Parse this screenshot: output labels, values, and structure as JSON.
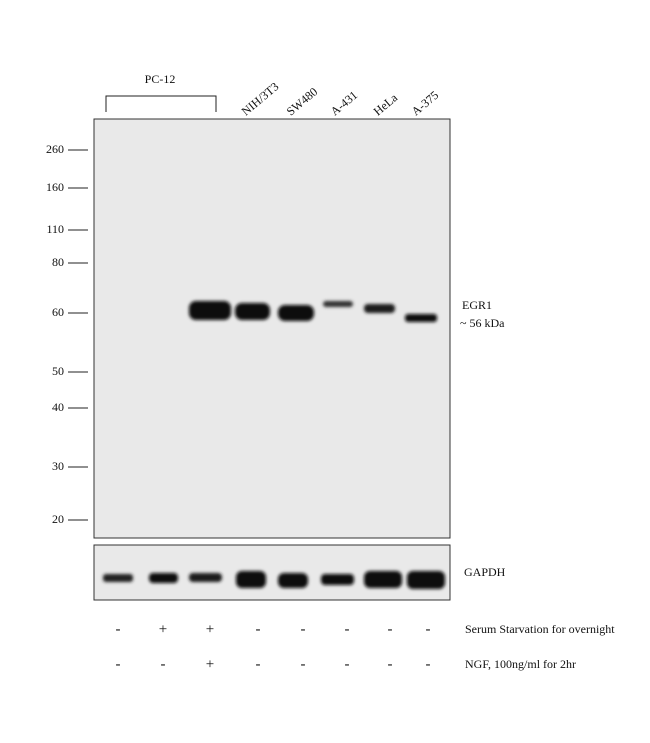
{
  "header": {
    "group": "PC-12",
    "lanes": [
      "NIH/3T3",
      "SW480",
      "A-431",
      "HeLa",
      "A-375"
    ]
  },
  "markers": [
    260,
    160,
    110,
    80,
    60,
    50,
    40,
    30,
    20
  ],
  "annotations": {
    "target": "EGR1",
    "size": "~ 56 kDa",
    "loading": "GAPDH"
  },
  "treatments": [
    {
      "label": "Serum Starvation for overnight",
      "symbols": [
        "-",
        "+",
        "+",
        "-",
        "-",
        "-",
        "-",
        "-"
      ]
    },
    {
      "label": "NGF, 100ng/ml for 2hr",
      "symbols": [
        "-",
        "-",
        "+",
        "-",
        "-",
        "-",
        "-",
        "-"
      ]
    }
  ]
}
